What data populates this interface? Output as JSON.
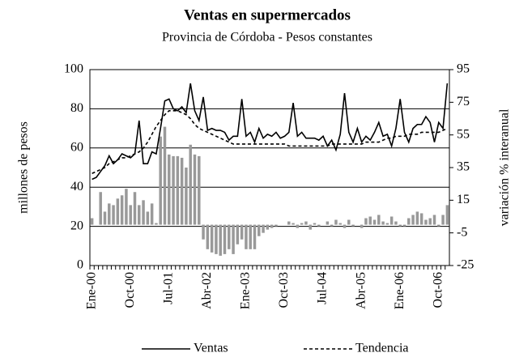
{
  "chart_data": {
    "type": "bar-line",
    "title": "Ventas en supermercados",
    "subtitle": "Provincia de Córdoba - Pesos constantes",
    "ylabel": "millones de pesos",
    "y2label": "variación % interanual",
    "categories": [
      "Ene-00",
      null,
      null,
      null,
      null,
      null,
      null,
      null,
      null,
      "Oct-00",
      null,
      null,
      null,
      null,
      null,
      null,
      null,
      null,
      "Jul-01",
      null,
      null,
      null,
      null,
      null,
      null,
      null,
      null,
      "Abr-02",
      null,
      null,
      null,
      null,
      null,
      null,
      null,
      null,
      "Ene-03",
      null,
      null,
      null,
      null,
      null,
      null,
      null,
      null,
      "Oct-03",
      null,
      null,
      null,
      null,
      null,
      null,
      null,
      null,
      "Jul-04",
      null,
      null,
      null,
      null,
      null,
      null,
      null,
      null,
      "Abr-05",
      null,
      null,
      null,
      null,
      null,
      null,
      null,
      null,
      "Ene-06",
      null,
      null,
      null,
      null,
      null,
      null,
      null,
      null,
      "Oct-06",
      null,
      null
    ],
    "ylim": [
      0,
      100
    ],
    "yticks": [
      0,
      20,
      40,
      60,
      80,
      100
    ],
    "y2lim": [
      -25,
      95
    ],
    "y2ticks": [
      -25,
      -5,
      15,
      35,
      55,
      75,
      95
    ],
    "grid": true,
    "series": [
      {
        "name": "variación % interanual",
        "kind": "bar",
        "axis": "y2",
        "color": "#999999",
        "values": [
          4,
          0,
          20,
          8,
          13,
          12,
          16,
          18,
          22,
          12,
          20,
          12,
          15,
          8,
          13,
          1,
          54,
          60,
          43,
          42,
          42,
          41,
          35,
          49,
          43,
          42,
          -9,
          -15,
          -17,
          -18,
          -19,
          -18,
          -15,
          -18,
          -12,
          -9,
          -15,
          -15,
          -15,
          -7,
          -5,
          -3,
          -2,
          -1,
          0,
          0,
          2,
          1,
          -2,
          1,
          2,
          -3,
          1,
          -1,
          0,
          2,
          -1,
          3,
          1,
          -2,
          3,
          -1,
          0,
          -2,
          4,
          5,
          3,
          6,
          2,
          1,
          5,
          2,
          -1,
          -1,
          4,
          6,
          8,
          7,
          3,
          4,
          6,
          -1,
          6,
          12
        ]
      },
      {
        "name": "Ventas",
        "kind": "line",
        "color": "#000000",
        "dash": false,
        "values": [
          44,
          45,
          48,
          51,
          56,
          52,
          54,
          57,
          56,
          55,
          57,
          74,
          52,
          52,
          58,
          57,
          70,
          84,
          85,
          80,
          79,
          81,
          78,
          93,
          79,
          74,
          86,
          69,
          70,
          69,
          69,
          68,
          64,
          66,
          66,
          85,
          66,
          68,
          63,
          70,
          65,
          67,
          66,
          68,
          65,
          66,
          68,
          83,
          66,
          68,
          65,
          65,
          65,
          64,
          66,
          61,
          64,
          59,
          67,
          88,
          68,
          63,
          70,
          63,
          66,
          64,
          68,
          73,
          66,
          67,
          61,
          70,
          85,
          68,
          63,
          70,
          72,
          72,
          76,
          73,
          63,
          73,
          70,
          93
        ]
      },
      {
        "name": "Tendencia",
        "kind": "line",
        "color": "#000000",
        "dash": true,
        "values": [
          47,
          48,
          49,
          50,
          52,
          53,
          54,
          55,
          55,
          56,
          57,
          58,
          60,
          63,
          67,
          71,
          74,
          77,
          79,
          79,
          79,
          78,
          77,
          75,
          72,
          70,
          69,
          68,
          67,
          66,
          65,
          64,
          63,
          62,
          62,
          62,
          62,
          62,
          62,
          62,
          62,
          62,
          62,
          62,
          62,
          62,
          61,
          61,
          61,
          61,
          61,
          61,
          61,
          61,
          61,
          61,
          62,
          62,
          62,
          62,
          62,
          62,
          62,
          62,
          63,
          63,
          63,
          63,
          64,
          65,
          65,
          66,
          66,
          66,
          67,
          67,
          67,
          68,
          68,
          68,
          68,
          68,
          69,
          70
        ]
      }
    ]
  }
}
